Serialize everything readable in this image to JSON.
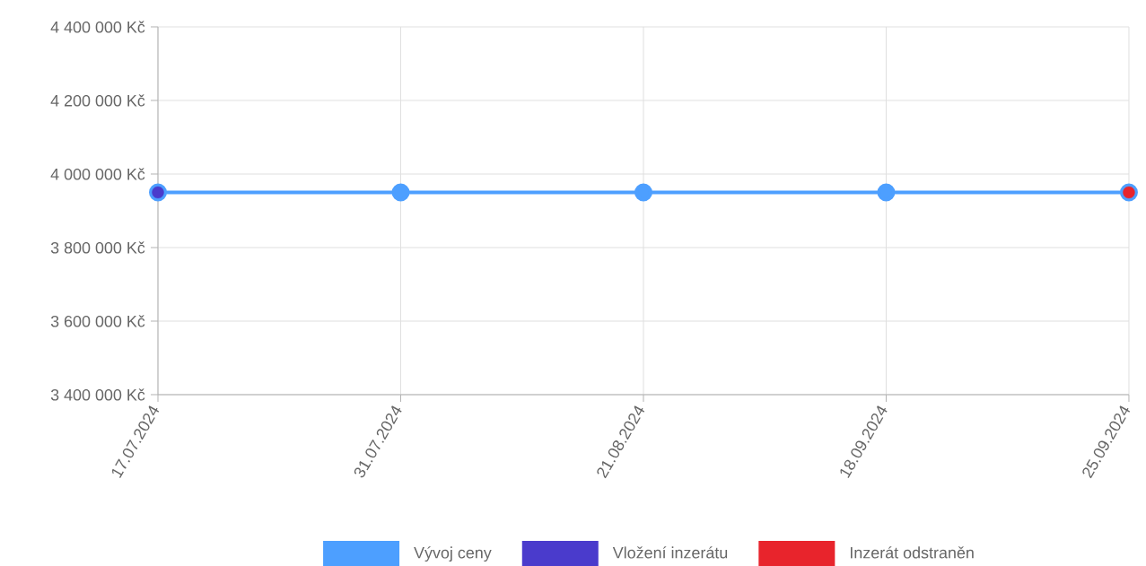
{
  "chart_data": {
    "type": "line",
    "categories": [
      "17.07.2024",
      "31.07.2024",
      "21.08.2024",
      "18.09.2024",
      "25.09.2024"
    ],
    "series": [
      {
        "name": "Vývoj ceny",
        "color": "#4d9fff",
        "values": [
          3950000,
          3950000,
          3950000,
          3950000,
          3950000
        ]
      },
      {
        "name": "Vložení inzerátu",
        "type": "scatter",
        "color": "#4a3bcc",
        "values": [
          3950000,
          null,
          null,
          null,
          null
        ]
      },
      {
        "name": "Inzerát odstraněn",
        "type": "scatter",
        "color": "#e8242c",
        "values": [
          null,
          null,
          null,
          null,
          3950000
        ]
      }
    ],
    "ylim": [
      3400000,
      4400000
    ],
    "yticks": [
      {
        "value": 3400000,
        "label": "3 400 000 Kč"
      },
      {
        "value": 3600000,
        "label": "3 600 000 Kč"
      },
      {
        "value": 3800000,
        "label": "3 800 000 Kč"
      },
      {
        "value": 4000000,
        "label": "4 000 000 Kč"
      },
      {
        "value": 4200000,
        "label": "4 200 000 Kč"
      },
      {
        "value": 4400000,
        "label": "4 400 000 Kč"
      }
    ],
    "grid": true,
    "legend": "bottom",
    "marker": "circle"
  }
}
